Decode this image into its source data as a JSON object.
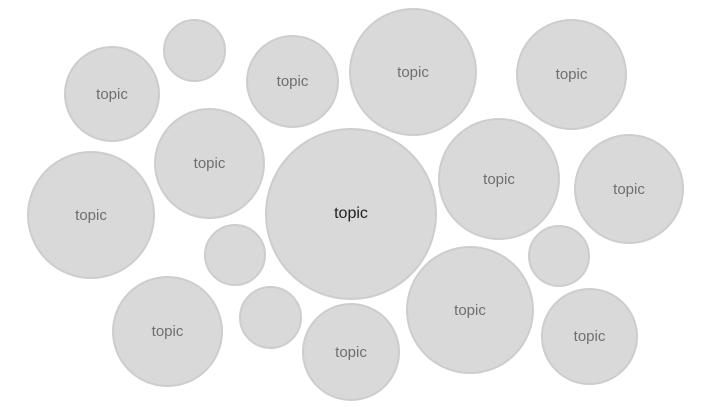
{
  "colors": {
    "bubble_fill": "#d9d9d9",
    "bubble_border": "#cdcdcd",
    "label_text": "#6f6f6f",
    "center_label_text": "#1f1f1f"
  },
  "bubbles": [
    {
      "label": "topic"
    },
    {
      "label": ""
    },
    {
      "label": "topic"
    },
    {
      "label": "topic"
    },
    {
      "label": "topic"
    },
    {
      "label": "topic"
    },
    {
      "label": "topic"
    },
    {
      "label": "topic"
    },
    {
      "label": "topic"
    },
    {
      "label": "topic"
    },
    {
      "label": ""
    },
    {
      "label": ""
    },
    {
      "label": "topic"
    },
    {
      "label": ""
    },
    {
      "label": "topic"
    },
    {
      "label": "topic"
    },
    {
      "label": "topic"
    }
  ]
}
